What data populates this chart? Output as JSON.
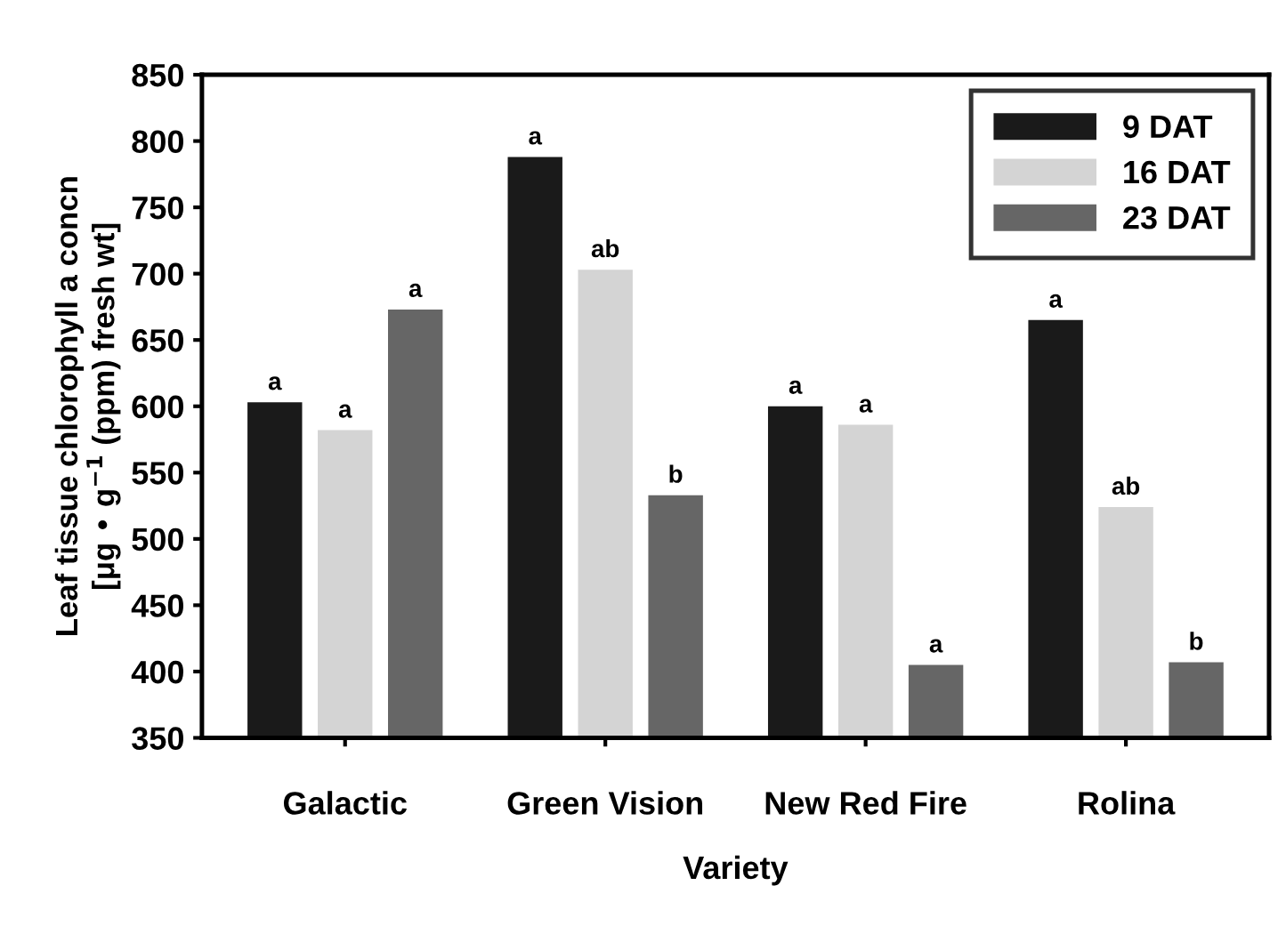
{
  "chart_data": {
    "type": "bar",
    "xlabel": "Variety",
    "ylabel": "Leaf tissue chlorophyll a concn\n[μg • g$^{−1}$ (ppm) fresh wt]",
    "categories": [
      "Galactic",
      "Green Vision",
      "New Red Fire",
      "Rolina"
    ],
    "series": [
      {
        "name": "9 DAT",
        "color": "#1a1a1a",
        "values": [
          603,
          788,
          600,
          665
        ]
      },
      {
        "name": "16 DAT",
        "color": "#d4d4d4",
        "values": [
          582,
          703,
          586,
          524
        ]
      },
      {
        "name": "23 DAT",
        "color": "#666666",
        "values": [
          673,
          533,
          405,
          407
        ]
      }
    ],
    "ylim": [
      350,
      850
    ],
    "yticks": [
      350,
      400,
      450,
      500,
      550,
      600,
      650,
      700,
      750,
      800,
      850
    ],
    "legend": "top right",
    "grid": false,
    "annotations": [
      "a",
      "a",
      "a",
      "a",
      "ab",
      "b",
      "a",
      "a",
      "a",
      "a",
      "ab",
      "b"
    ]
  }
}
